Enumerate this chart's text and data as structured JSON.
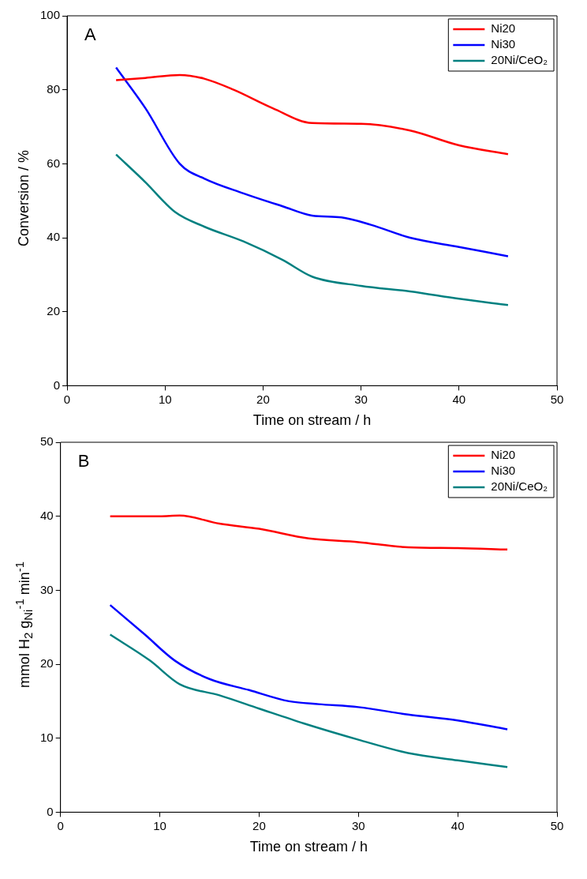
{
  "chart_data": [
    {
      "type": "line",
      "title": "A",
      "xlabel": "Time on stream / h",
      "ylabel": "Conversion / %",
      "xlim": [
        0,
        50
      ],
      "xticks": [
        0,
        10,
        20,
        30,
        40,
        50
      ],
      "ylim": [
        0,
        100
      ],
      "yticks": [
        0,
        20,
        40,
        60,
        80,
        100
      ],
      "legend": "top right",
      "series": [
        {
          "name": "Ni20",
          "color": "#ff0000",
          "x": [
            5,
            8,
            11.5,
            14,
            17,
            21,
            25,
            30,
            35,
            40,
            45
          ],
          "values": [
            82.6,
            83.2,
            84,
            83,
            80,
            75,
            71,
            70.8,
            69,
            65,
            62.6
          ]
        },
        {
          "name": "Ni30",
          "color": "#0000ff",
          "x": [
            5,
            8,
            11.5,
            14,
            18,
            22,
            25,
            28,
            31,
            35,
            40,
            45
          ],
          "values": [
            86,
            75,
            60,
            56,
            52,
            48.5,
            46,
            45.5,
            43.5,
            40,
            37.5,
            35
          ]
        },
        {
          "name": "20Ni/CeO₂",
          "color": "#008080",
          "x": [
            5,
            8,
            11,
            14,
            18,
            22,
            25,
            30,
            35,
            40,
            45
          ],
          "values": [
            62.5,
            55,
            47,
            43,
            39,
            34,
            29.5,
            27,
            25.5,
            23.5,
            21.8
          ]
        }
      ]
    },
    {
      "type": "line",
      "title": "B",
      "xlabel": "Time on stream / h",
      "ylabel": "mmol H$_{2}$ g$_{Ni}$$^{-1}$ min$^{-1}$",
      "xlim": [
        0,
        50
      ],
      "xticks": [
        0,
        10,
        20,
        30,
        40,
        50
      ],
      "ylim": [
        0,
        50
      ],
      "yticks": [
        0,
        10,
        20,
        30,
        40,
        50
      ],
      "legend": "top right",
      "series": [
        {
          "name": "Ni20",
          "color": "#ff0000",
          "x": [
            5,
            10,
            12,
            16,
            20,
            25,
            30,
            35,
            40,
            45
          ],
          "values": [
            40,
            40,
            40.1,
            39,
            38.3,
            37,
            36.5,
            35.8,
            35.7,
            35.5
          ]
        },
        {
          "name": "Ni30",
          "color": "#0000ff",
          "x": [
            5,
            8.5,
            11.5,
            15,
            19,
            23,
            26,
            30,
            35,
            40,
            45
          ],
          "values": [
            28,
            24,
            20.5,
            18,
            16.5,
            15,
            14.6,
            14.2,
            13.2,
            12.4,
            11.2
          ]
        },
        {
          "name": "20Ni/CeO₂",
          "color": "#008080",
          "x": [
            5,
            9,
            12,
            16,
            20,
            24.5,
            30,
            35,
            40,
            45
          ],
          "values": [
            24,
            20.5,
            17.3,
            15.8,
            14,
            12,
            9.8,
            8,
            7,
            6.1
          ]
        }
      ]
    }
  ]
}
